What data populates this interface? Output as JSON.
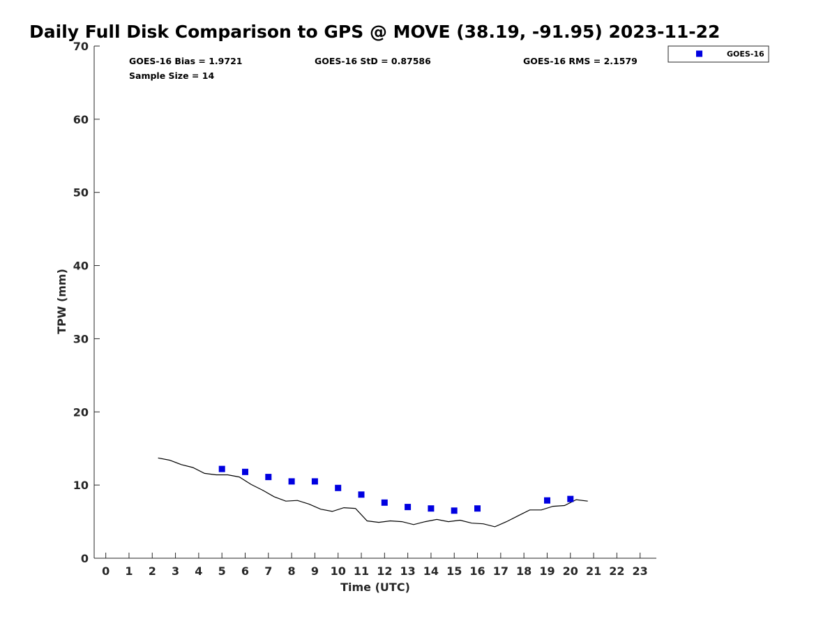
{
  "chart_data": {
    "type": "scatter",
    "title": "Daily Full Disk Comparison to GPS @ MOVE (38.19, -91.95) 2023-11-22",
    "xlabel": "Time (UTC)",
    "ylabel": "TPW (mm)",
    "xlim": [
      -0.5,
      23.7
    ],
    "ylim": [
      0,
      70
    ],
    "x_ticks": [
      0,
      1,
      2,
      3,
      4,
      5,
      6,
      7,
      8,
      9,
      10,
      11,
      12,
      13,
      14,
      15,
      16,
      17,
      18,
      19,
      20,
      21,
      22,
      23
    ],
    "y_ticks": [
      0,
      10,
      20,
      30,
      40,
      50,
      60,
      70
    ],
    "grid": false,
    "legend_position": "top-right-outside",
    "stats": {
      "bias": "GOES-16 Bias = 1.9721",
      "std": "GOES-16 StD = 0.87586",
      "rms": "GOES-16 RMS = 2.1579",
      "sample": "Sample Size = 14"
    },
    "series": [
      {
        "name": "GOES-16",
        "kind": "scatter",
        "marker": "square",
        "color": "#0000e0",
        "x": [
          5,
          6,
          7,
          8,
          9,
          10,
          11,
          12,
          13,
          14,
          15,
          16,
          19,
          20
        ],
        "y": [
          12.2,
          11.8,
          11.1,
          10.5,
          10.5,
          9.6,
          8.7,
          7.6,
          7.0,
          6.8,
          6.5,
          6.8,
          7.9,
          8.1
        ]
      },
      {
        "kind": "line",
        "color": "#000000",
        "x": [
          2.25,
          2.75,
          3.25,
          3.75,
          4.25,
          4.75,
          5.25,
          5.75,
          6.25,
          6.75,
          7.25,
          7.75,
          8.25,
          8.75,
          9.25,
          9.75,
          10.25,
          10.75,
          11.25,
          11.75,
          12.25,
          12.75,
          13.25,
          13.75,
          14.25,
          14.75,
          15.25,
          15.75,
          16.25,
          16.75,
          17.25,
          17.75,
          18.25,
          18.75,
          19.25,
          19.75,
          20.25,
          20.75
        ],
        "y": [
          13.7,
          13.4,
          12.8,
          12.4,
          11.6,
          11.4,
          11.4,
          11.1,
          10.1,
          9.3,
          8.4,
          7.8,
          7.9,
          7.4,
          6.7,
          6.4,
          6.9,
          6.8,
          5.1,
          4.9,
          5.1,
          5.0,
          4.6,
          5.0,
          5.3,
          5.0,
          5.2,
          4.8,
          4.7,
          4.3,
          5.0,
          5.8,
          6.6,
          6.6,
          7.1,
          7.2,
          8.0,
          7.8
        ]
      }
    ]
  }
}
